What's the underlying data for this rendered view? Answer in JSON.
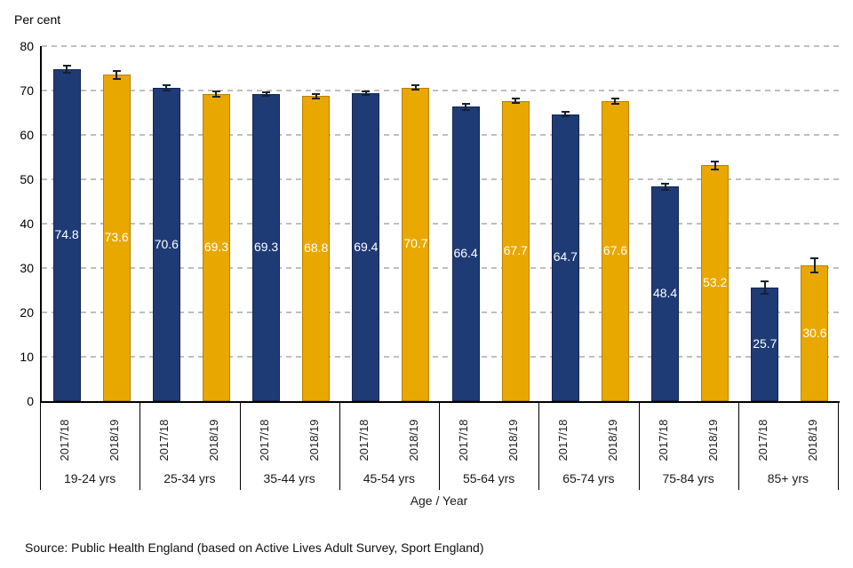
{
  "source": "Source: Public Health England (based on Active Lives Adult Survey, Sport England)",
  "colors": {
    "series_2017_18": "#1f3b76",
    "series_2018_19": "#e9a800",
    "gridline": "#bfbfbf",
    "axis": "#000000",
    "error_bar": "#17202e",
    "value_label": "#ffffff"
  },
  "chart_data": {
    "type": "bar",
    "title": "",
    "ylabel": "Per cent",
    "xlabel": "Age / Year",
    "ylim": [
      0,
      80
    ],
    "yticks": [
      0,
      10,
      20,
      30,
      40,
      50,
      60,
      70,
      80
    ],
    "grid": "horizontal dashed",
    "legend_position": "none",
    "categories": [
      "19-24 yrs",
      "25-34 yrs",
      "35-44 yrs",
      "45-54 yrs",
      "55-64 yrs",
      "65-74 yrs",
      "75-84 yrs",
      "85+ yrs"
    ],
    "series": [
      {
        "name": "2017/18",
        "color": "#1f3b76",
        "values": [
          74.8,
          70.6,
          69.3,
          69.4,
          66.4,
          64.7,
          48.4,
          25.7
        ],
        "errors": [
          1.0,
          0.8,
          0.6,
          0.6,
          0.9,
          0.7,
          0.9,
          1.6
        ]
      },
      {
        "name": "2018/19",
        "color": "#e9a800",
        "values": [
          73.6,
          69.3,
          68.8,
          70.7,
          67.7,
          67.6,
          53.2,
          30.6
        ],
        "errors": [
          1.1,
          0.8,
          0.7,
          0.7,
          0.7,
          0.8,
          1.1,
          1.8
        ]
      }
    ],
    "error_bars": true,
    "value_labels": "centered inside bars, white"
  }
}
